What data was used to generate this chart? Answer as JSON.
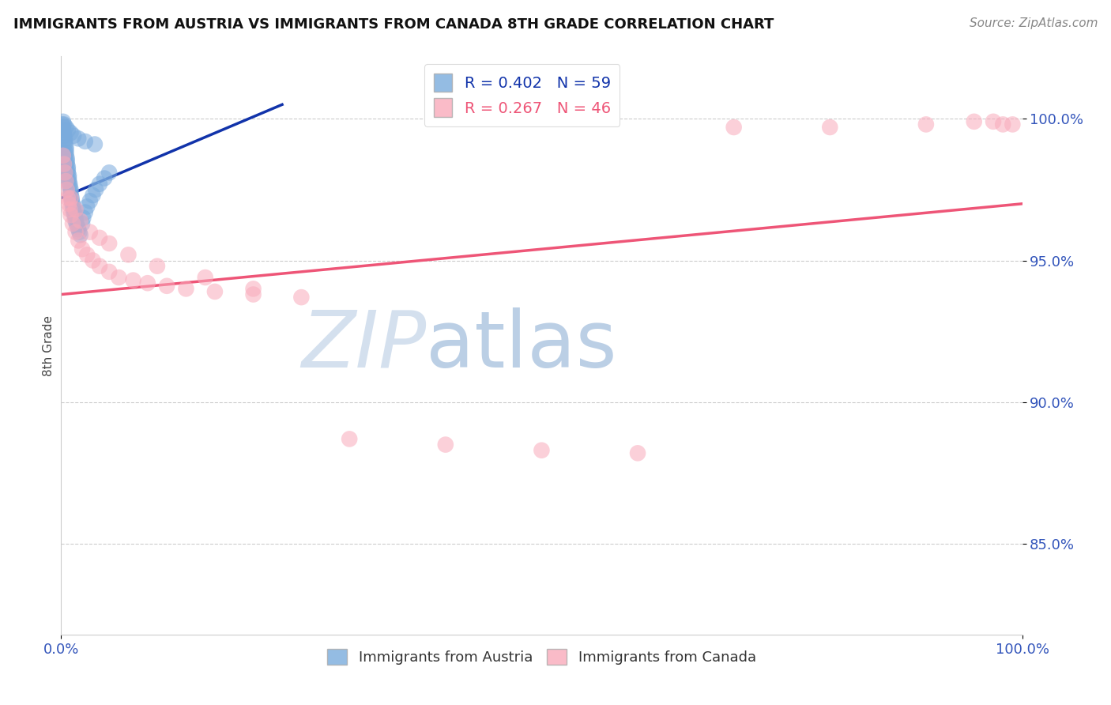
{
  "title": "IMMIGRANTS FROM AUSTRIA VS IMMIGRANTS FROM CANADA 8TH GRADE CORRELATION CHART",
  "source": "Source: ZipAtlas.com",
  "ylabel": "8th Grade",
  "ytick_labels": [
    "100.0%",
    "95.0%",
    "90.0%",
    "85.0%"
  ],
  "ytick_values": [
    1.0,
    0.95,
    0.9,
    0.85
  ],
  "xmin": 0.0,
  "xmax": 1.0,
  "ymin": 0.818,
  "ymax": 1.022,
  "xtick_left": "0.0%",
  "xtick_right": "100.0%",
  "legend_blue_r": "R = 0.402",
  "legend_blue_n": "N = 59",
  "legend_pink_r": "R = 0.267",
  "legend_pink_n": "N = 46",
  "legend_label_blue": "Immigrants from Austria",
  "legend_label_pink": "Immigrants from Canada",
  "blue_color": "#7aabdd",
  "pink_color": "#f9aabb",
  "trend_blue_color": "#1133aa",
  "trend_pink_color": "#ee5577",
  "watermark_color": "#ccd9ee",
  "title_fontsize": 13,
  "source_fontsize": 11,
  "blue_x": [
    0.001,
    0.002,
    0.002,
    0.003,
    0.003,
    0.004,
    0.004,
    0.004,
    0.005,
    0.005,
    0.005,
    0.005,
    0.006,
    0.006,
    0.006,
    0.007,
    0.007,
    0.007,
    0.008,
    0.008,
    0.008,
    0.009,
    0.009,
    0.01,
    0.01,
    0.01,
    0.011,
    0.011,
    0.012,
    0.012,
    0.013,
    0.013,
    0.014,
    0.015,
    0.015,
    0.016,
    0.017,
    0.018,
    0.019,
    0.02,
    0.022,
    0.023,
    0.025,
    0.027,
    0.03,
    0.033,
    0.036,
    0.04,
    0.045,
    0.05,
    0.002,
    0.003,
    0.005,
    0.007,
    0.01,
    0.013,
    0.018,
    0.025,
    0.035
  ],
  "blue_y": [
    0.998,
    0.997,
    0.996,
    0.995,
    0.994,
    0.993,
    0.992,
    0.991,
    0.99,
    0.989,
    0.988,
    0.987,
    0.986,
    0.985,
    0.984,
    0.983,
    0.982,
    0.981,
    0.98,
    0.979,
    0.978,
    0.977,
    0.976,
    0.975,
    0.974,
    0.973,
    0.972,
    0.971,
    0.97,
    0.969,
    0.968,
    0.967,
    0.966,
    0.965,
    0.964,
    0.963,
    0.962,
    0.961,
    0.96,
    0.959,
    0.963,
    0.965,
    0.967,
    0.969,
    0.971,
    0.973,
    0.975,
    0.977,
    0.979,
    0.981,
    0.999,
    0.998,
    0.997,
    0.996,
    0.995,
    0.994,
    0.993,
    0.992,
    0.991
  ],
  "pink_x": [
    0.002,
    0.003,
    0.004,
    0.005,
    0.006,
    0.007,
    0.008,
    0.009,
    0.01,
    0.012,
    0.015,
    0.018,
    0.022,
    0.027,
    0.033,
    0.04,
    0.05,
    0.06,
    0.075,
    0.09,
    0.11,
    0.13,
    0.16,
    0.2,
    0.25,
    0.01,
    0.015,
    0.02,
    0.03,
    0.04,
    0.05,
    0.07,
    0.1,
    0.15,
    0.2,
    0.3,
    0.4,
    0.5,
    0.6,
    0.7,
    0.8,
    0.9,
    0.95,
    0.97,
    0.98,
    0.99
  ],
  "pink_y": [
    0.987,
    0.984,
    0.981,
    0.978,
    0.975,
    0.972,
    0.97,
    0.968,
    0.966,
    0.963,
    0.96,
    0.957,
    0.954,
    0.952,
    0.95,
    0.948,
    0.946,
    0.944,
    0.943,
    0.942,
    0.941,
    0.94,
    0.939,
    0.938,
    0.937,
    0.972,
    0.968,
    0.964,
    0.96,
    0.958,
    0.956,
    0.952,
    0.948,
    0.944,
    0.94,
    0.887,
    0.885,
    0.883,
    0.882,
    0.997,
    0.997,
    0.998,
    0.999,
    0.999,
    0.998,
    0.998
  ],
  "trend_blue_x0": 0.0,
  "trend_blue_y0": 0.972,
  "trend_blue_x1": 0.23,
  "trend_blue_y1": 1.005,
  "trend_pink_x0": 0.0,
  "trend_pink_y0": 0.938,
  "trend_pink_x1": 1.0,
  "trend_pink_y1": 0.97
}
